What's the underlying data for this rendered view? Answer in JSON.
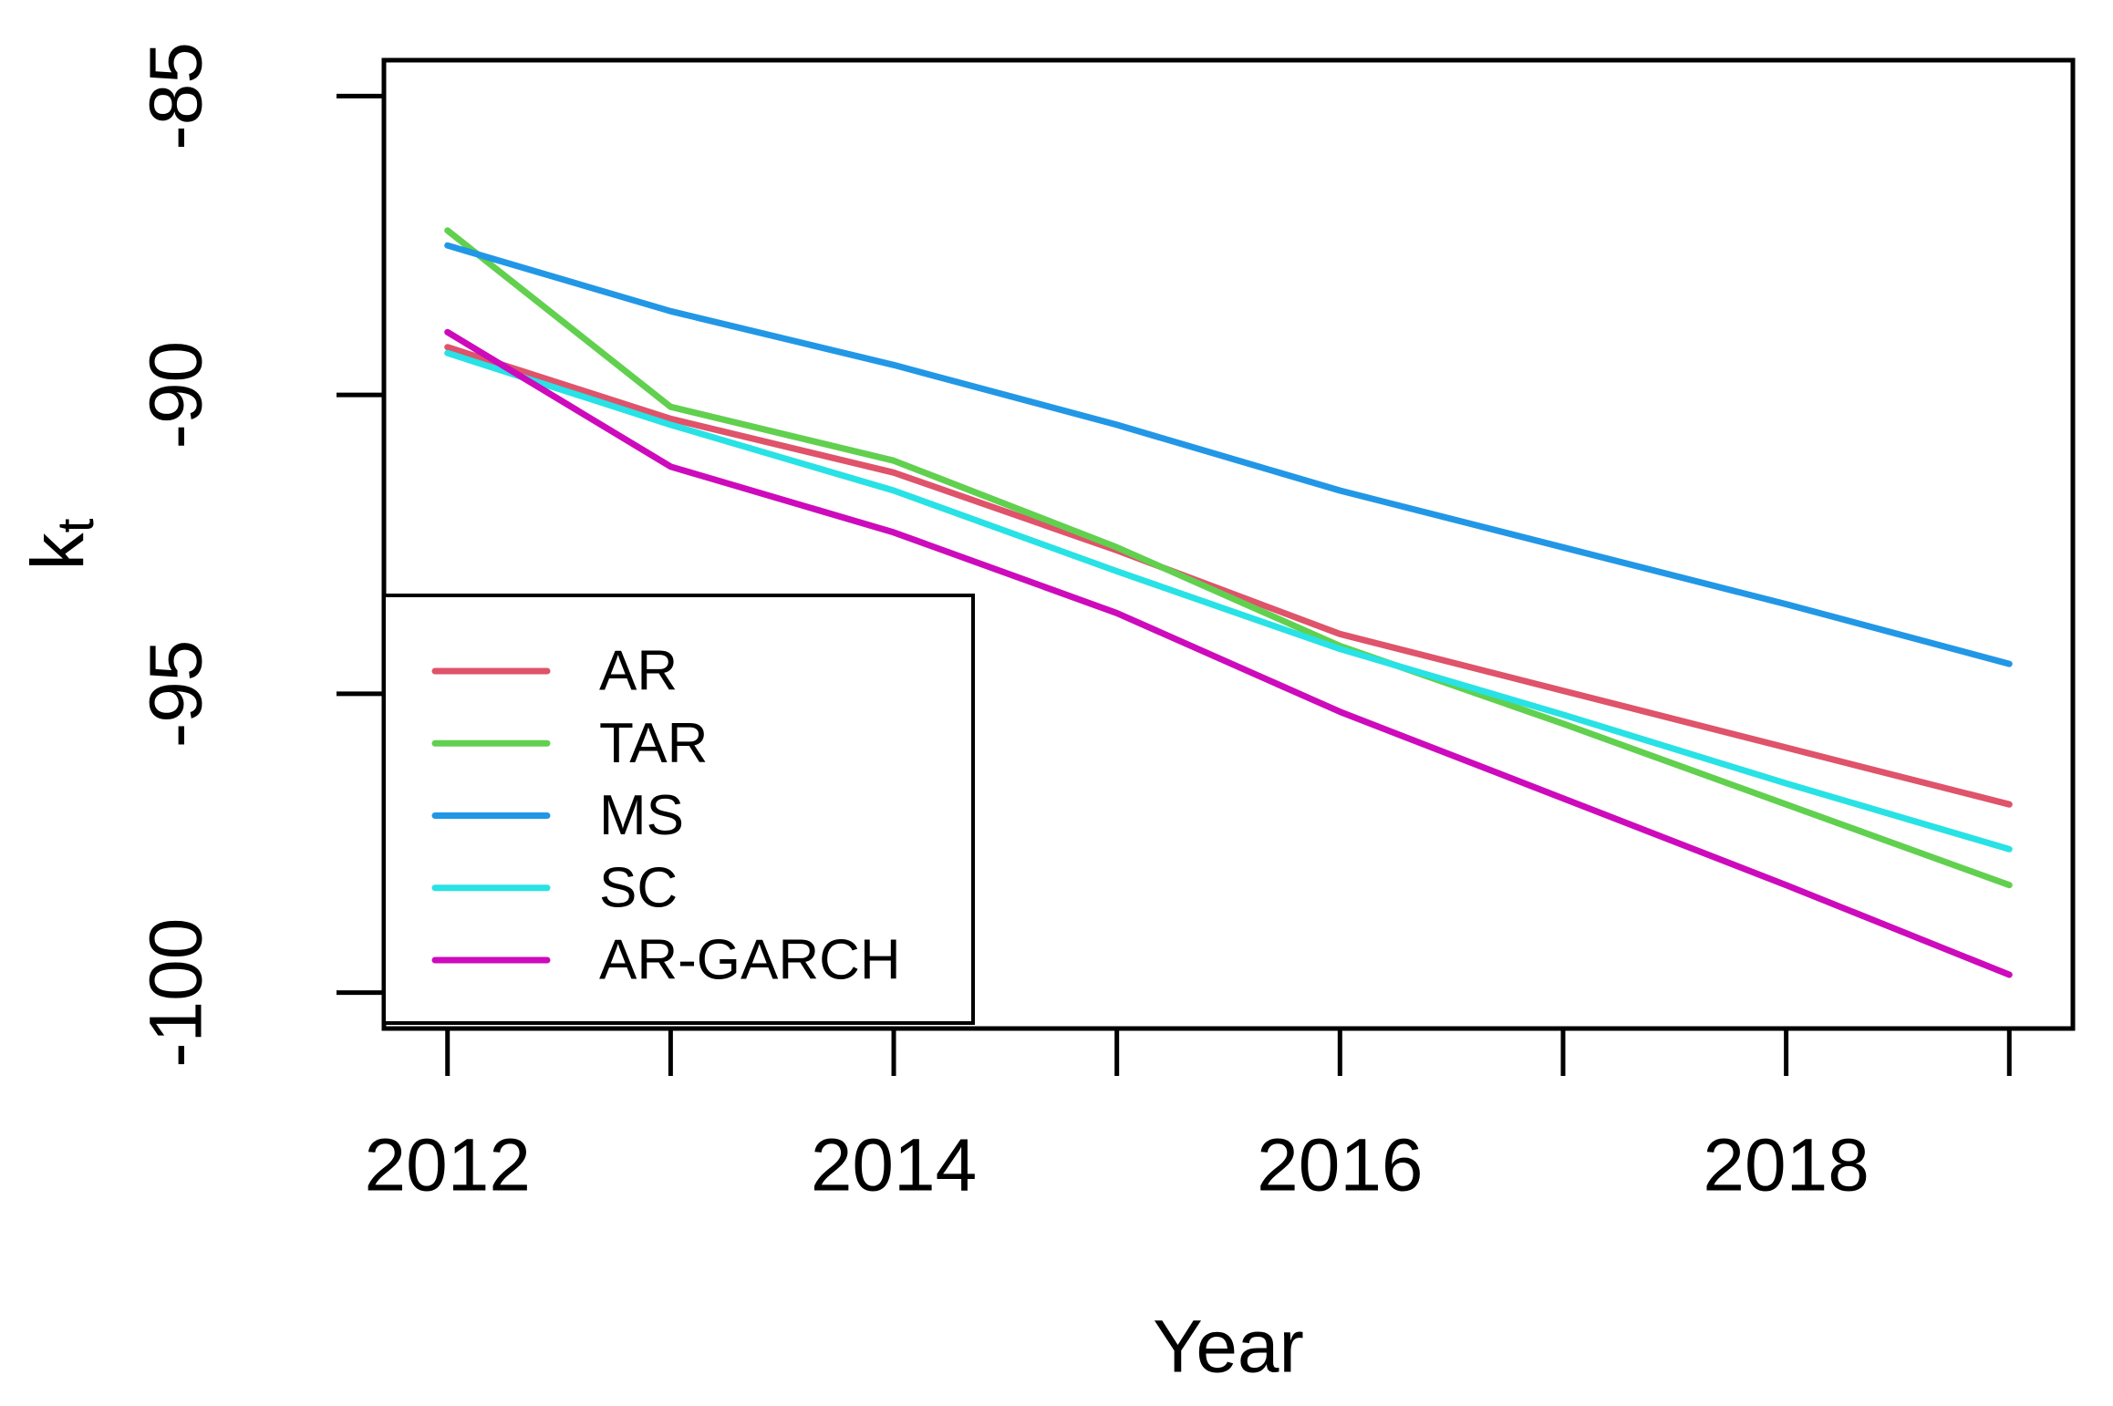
{
  "chart_data": {
    "type": "line",
    "title": "",
    "xlabel": "Year",
    "ylabel": "k_t",
    "ylabel_base": "k",
    "ylabel_subscript": "t",
    "x": [
      2012,
      2013,
      2014,
      2015,
      2016,
      2017,
      2018,
      2019
    ],
    "series": [
      {
        "name": "AR",
        "color": "#DF536B",
        "values": [
          -89.2,
          -90.4,
          -91.3,
          -92.6,
          -94.0,
          -94.95,
          -95.9,
          -96.85
        ]
      },
      {
        "name": "TAR",
        "color": "#61D04F",
        "values": [
          -87.25,
          -90.2,
          -91.1,
          -92.55,
          -94.2,
          -95.5,
          -96.85,
          -98.2
        ]
      },
      {
        "name": "MS",
        "color": "#2297E6",
        "values": [
          -87.5,
          -88.6,
          -89.5,
          -90.5,
          -91.6,
          -92.55,
          -93.5,
          -94.5
        ]
      },
      {
        "name": "SC",
        "color": "#28E2E5",
        "values": [
          -89.3,
          -90.5,
          -91.6,
          -92.95,
          -94.25,
          -95.35,
          -96.5,
          -97.6
        ]
      },
      {
        "name": "AR-GARCH",
        "color": "#CD0BBC",
        "values": [
          -88.95,
          -91.2,
          -92.3,
          -93.65,
          -95.3,
          -96.75,
          -98.2,
          -99.7
        ]
      }
    ],
    "xlim": [
      2011.715,
      2019.285
    ],
    "ylim": [
      -100.6,
      -84.4
    ],
    "xticks": [
      2012,
      2013,
      2014,
      2015,
      2016,
      2017,
      2018,
      2019
    ],
    "xtick_labels": [
      "2012",
      "",
      "2014",
      "",
      "2016",
      "",
      "2018",
      ""
    ],
    "yticks": [
      -85,
      -90,
      -95,
      -100
    ],
    "ytick_labels": [
      "-85",
      "-90",
      "-95",
      "-100"
    ],
    "legend_position": "bottomleft",
    "grid": false,
    "axis_color": "#000000",
    "background": "#FFFFFF",
    "line_width": 7
  },
  "legend": {
    "items": [
      "AR",
      "TAR",
      "MS",
      "SC",
      "AR-GARCH"
    ]
  }
}
